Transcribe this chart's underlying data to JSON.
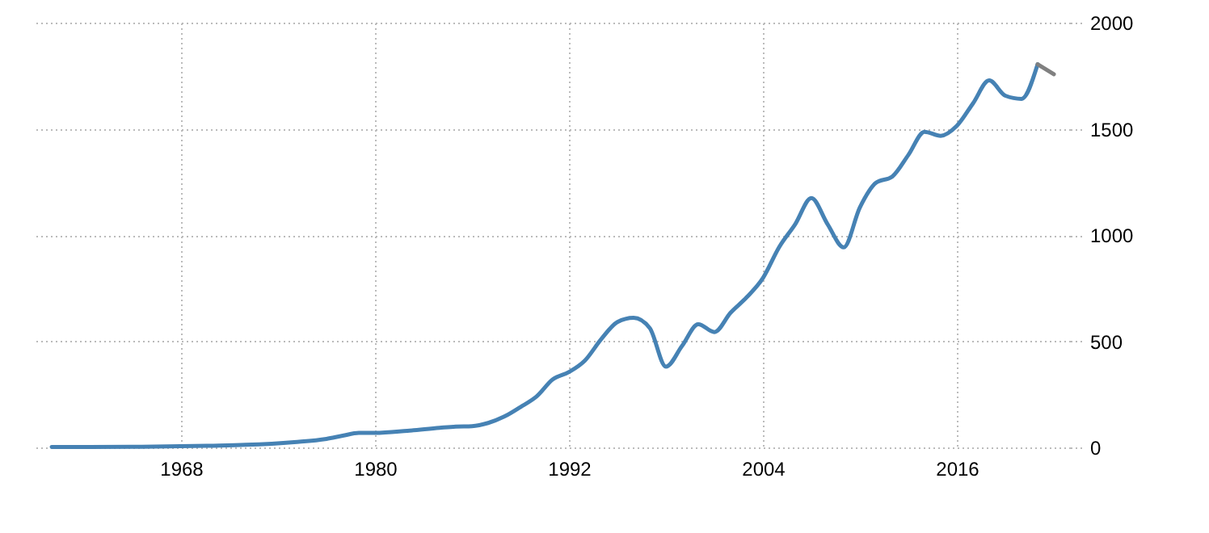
{
  "chart_data": {
    "type": "line",
    "xlim": [
      1959,
      2023
    ],
    "xticks": [
      1968,
      1980,
      1992,
      2004,
      2016
    ],
    "ylim": [
      0,
      2000
    ],
    "yticks": [
      0,
      500,
      1000,
      1500,
      2000
    ],
    "grid": true,
    "line_style": "solid",
    "series": [
      {
        "color": "#4682b4",
        "x": [
          1960,
          1965,
          1970,
          1972,
          1975,
          1977,
          1978,
          1979,
          1980,
          1982,
          1984,
          1985,
          1986,
          1987,
          1988,
          1989,
          1990,
          1991,
          1992,
          1993,
          1994,
          1995,
          1996,
          1997,
          1998,
          1999,
          2000,
          2001,
          2002,
          2003,
          2004,
          2005,
          2006,
          2007,
          2008,
          2009,
          2010,
          2011,
          2012,
          2013,
          2014,
          2015,
          2016,
          2017,
          2018,
          2019,
          2020,
          2021
        ],
        "values": [
          2,
          3,
          8,
          12,
          25,
          40,
          55,
          68,
          68,
          78,
          92,
          98,
          100,
          115,
          145,
          190,
          240,
          320,
          355,
          410,
          510,
          590,
          610,
          562,
          380,
          478,
          580,
          543,
          634,
          707,
          797,
          942,
          1051,
          1174,
          1051,
          942,
          1130,
          1246,
          1275,
          1377,
          1486,
          1467,
          1514,
          1620,
          1728,
          1656,
          1641,
          1804
        ]
      },
      {
        "color": "#808080",
        "x": [
          2021,
          2022
        ],
        "values": [
          1804,
          1757
        ]
      }
    ]
  }
}
